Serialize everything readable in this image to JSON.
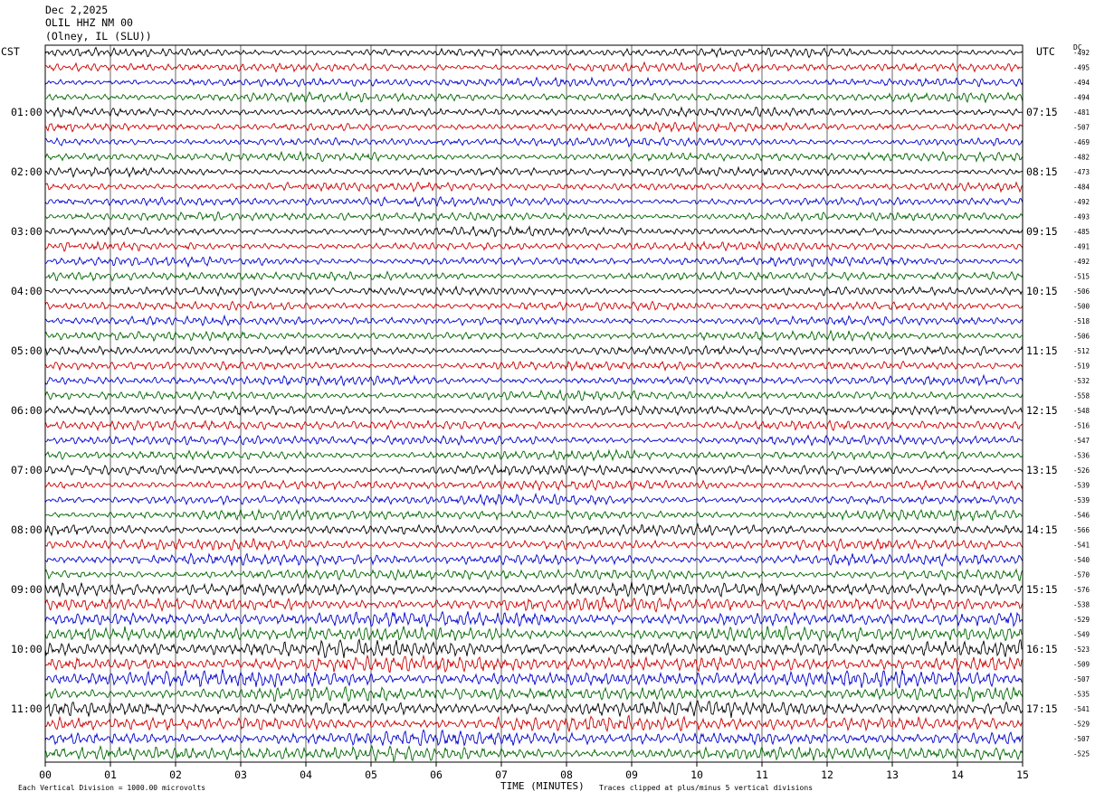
{
  "header": {
    "date": "Dec 2,2025",
    "station": "OLIL HHZ NM 00",
    "location": "(Olney, IL (SLU))"
  },
  "corner_labels": {
    "left": "CST",
    "right": "UTC",
    "dc": "DC"
  },
  "footer": {
    "scale_note": "Each Vertical Division = 1000.00 microvolts",
    "x_axis_title": "TIME (MINUTES)",
    "clip_note": "Traces clipped at plus/minus 5 vertical divisions"
  },
  "chart_data": {
    "type": "line",
    "title": "Dec 2,2025 OLIL HHZ NM 00 (Olney, IL (SLU))",
    "xlabel": "TIME (MINUTES)",
    "xlim": [
      0,
      15
    ],
    "x_ticks": [
      "00",
      "01",
      "02",
      "03",
      "04",
      "05",
      "06",
      "07",
      "08",
      "09",
      "10",
      "11",
      "12",
      "13",
      "14",
      "15"
    ],
    "grid": true,
    "trace_colors": [
      "#000000",
      "#cc0000",
      "#0000cc",
      "#006600"
    ],
    "rows_per_hour": 4,
    "left_hour_labels": [
      "01:00",
      "02:00",
      "03:00",
      "04:00",
      "05:00",
      "06:00",
      "07:00",
      "08:00",
      "09:00",
      "10:00",
      "11:00"
    ],
    "right_hour_labels": [
      "07:15",
      "08:15",
      "09:15",
      "10:15",
      "11:15",
      "12:15",
      "13:15",
      "14:15",
      "15:15",
      "16:15",
      "17:15"
    ],
    "dc_offsets": [
      -492,
      -495,
      -494,
      -494,
      -481,
      -507,
      -469,
      -482,
      -473,
      -484,
      -492,
      -493,
      -485,
      -491,
      -492,
      -515,
      -506,
      -500,
      -518,
      -506,
      -512,
      -519,
      -532,
      -558,
      -548,
      -516,
      -547,
      -536,
      -526,
      -539,
      -539,
      -546,
      -566,
      -541,
      -540,
      -570,
      -576,
      -538,
      -529,
      -549,
      -523,
      -509,
      -507,
      -535,
      -541,
      -529,
      -507,
      -525
    ],
    "relative_amplitude": [
      1.0,
      1.0,
      1.0,
      1.0,
      1.0,
      1.0,
      1.0,
      1.0,
      1.0,
      1.0,
      1.0,
      1.0,
      1.0,
      1.0,
      1.0,
      1.0,
      1.0,
      1.0,
      1.0,
      1.0,
      1.05,
      1.05,
      1.05,
      1.05,
      1.1,
      1.1,
      1.1,
      1.1,
      1.15,
      1.15,
      1.15,
      1.15,
      1.2,
      1.2,
      1.25,
      1.25,
      1.5,
      1.6,
      1.7,
      1.7,
      1.8,
      1.8,
      1.8,
      1.6,
      1.7,
      1.7,
      1.6,
      1.6
    ]
  }
}
